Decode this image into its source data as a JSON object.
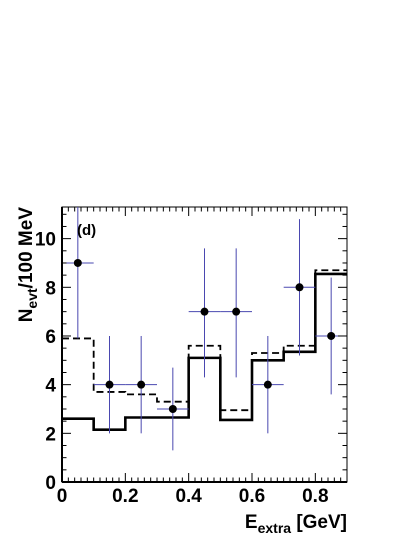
{
  "chart_data": {
    "type": "scatter",
    "panel_label": "(d)",
    "xlabel": {
      "main": "E",
      "sub": "extra",
      "unit": " [GeV]"
    },
    "ylabel": {
      "main": "N",
      "sub": "evt",
      "unit": "/100 MeV"
    },
    "xlim": [
      0,
      0.9
    ],
    "ylim": [
      0,
      11.3
    ],
    "x_ticks": [
      {
        "value": 0,
        "label": "0"
      },
      {
        "value": 0.2,
        "label": "0.2"
      },
      {
        "value": 0.4,
        "label": "0.4"
      },
      {
        "value": 0.6,
        "label": "0.6"
      },
      {
        "value": 0.8,
        "label": "0.8"
      }
    ],
    "y_ticks": [
      {
        "value": 0,
        "label": "0"
      },
      {
        "value": 2,
        "label": "2"
      },
      {
        "value": 4,
        "label": "4"
      },
      {
        "value": 6,
        "label": "6"
      },
      {
        "value": 8,
        "label": "8"
      },
      {
        "value": 10,
        "label": "10"
      }
    ],
    "bin_edges": [
      0,
      0.1,
      0.2,
      0.3,
      0.4,
      0.5,
      0.6,
      0.7,
      0.8,
      0.9
    ],
    "series": [
      {
        "style": "solid-histogram",
        "color": "#000000",
        "values": [
          2.6,
          2.15,
          2.65,
          2.65,
          5.1,
          2.55,
          5.0,
          5.35,
          8.55
        ]
      },
      {
        "style": "dashed-histogram",
        "color": "#000000",
        "values": [
          5.9,
          3.7,
          3.6,
          3.3,
          5.6,
          2.95,
          5.3,
          5.6,
          8.7
        ]
      },
      {
        "style": "points-with-errors",
        "marker_color": "#000000",
        "error_color": "#4a48b0",
        "points": [
          {
            "x": 0.05,
            "y": 9,
            "y_lo": 5.9,
            "y_hi": 11.3
          },
          {
            "x": 0.15,
            "y": 4,
            "y_lo": 2.0,
            "y_hi": 6.0
          },
          {
            "x": 0.25,
            "y": 4,
            "y_lo": 2.0,
            "y_hi": 6.0
          },
          {
            "x": 0.35,
            "y": 3,
            "y_lo": 1.3,
            "y_hi": 4.7
          },
          {
            "x": 0.45,
            "y": 7,
            "y_lo": 4.3,
            "y_hi": 9.6
          },
          {
            "x": 0.55,
            "y": 7,
            "y_lo": 4.3,
            "y_hi": 9.6
          },
          {
            "x": 0.65,
            "y": 4,
            "y_lo": 2.0,
            "y_hi": 6.0
          },
          {
            "x": 0.75,
            "y": 8,
            "y_lo": 5.2,
            "y_hi": 10.8
          },
          {
            "x": 0.85,
            "y": 6,
            "y_lo": 3.6,
            "y_hi": 8.4
          }
        ]
      }
    ],
    "grid": false,
    "legend": "none"
  }
}
